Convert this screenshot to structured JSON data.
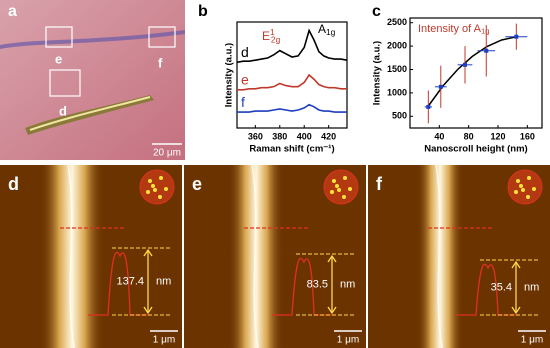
{
  "panel_a": {
    "label": "a",
    "boxes": [
      "e",
      "f",
      "d"
    ],
    "scale": "20 μm"
  },
  "chart_data": [
    {
      "type": "line",
      "label": "b",
      "xlabel": "Raman shift (cm⁻¹)",
      "ylabel": "Intensity (a.u.)",
      "annotations": [
        {
          "base": "E",
          "sub": "2g",
          "sup": "1"
        },
        {
          "base": "A",
          "sub": "1g"
        }
      ],
      "x": [
        345,
        350,
        355,
        360,
        365,
        370,
        375,
        380,
        385,
        390,
        395,
        400,
        404,
        408,
        412,
        416,
        420,
        425,
        430,
        435
      ],
      "xlim": [
        345,
        435
      ],
      "xticks": [
        360,
        380,
        400,
        420
      ],
      "ylim": [
        0,
        10
      ],
      "series": [
        {
          "name": "d",
          "color": "#000000",
          "values": [
            6.2,
            6.3,
            6.3,
            6.4,
            6.5,
            6.6,
            6.9,
            7.3,
            7.0,
            6.7,
            6.8,
            7.6,
            9.2,
            8.3,
            7.2,
            6.8,
            6.6,
            6.5,
            6.5,
            6.4
          ]
        },
        {
          "name": "e",
          "color": "#c0392b",
          "values": [
            3.6,
            3.6,
            3.7,
            3.7,
            3.8,
            3.8,
            3.9,
            4.2,
            4.0,
            3.9,
            3.9,
            4.3,
            5.0,
            4.6,
            4.1,
            3.9,
            3.8,
            3.8,
            3.7,
            3.7
          ]
        },
        {
          "name": "f",
          "color": "#1f3fbf",
          "values": [
            1.5,
            1.5,
            1.5,
            1.6,
            1.6,
            1.6,
            1.7,
            1.8,
            1.7,
            1.6,
            1.7,
            1.9,
            2.2,
            2.0,
            1.7,
            1.6,
            1.6,
            1.5,
            1.5,
            1.5
          ]
        }
      ]
    },
    {
      "type": "scatter",
      "label": "c",
      "annotation": {
        "base": "Intensity of A",
        "sub": "1g"
      },
      "xlabel": "Nanoscroll height (nm)",
      "ylabel": "Intensity (a.u.)",
      "xlim": [
        0,
        180
      ],
      "xticks": [
        40,
        80,
        120,
        160
      ],
      "ylim": [
        250,
        2600
      ],
      "yticks": [
        500,
        1000,
        1500,
        2000,
        2500
      ],
      "x": [
        25,
        42,
        75,
        104,
        145
      ],
      "xerr": [
        5,
        8,
        10,
        12,
        15
      ],
      "values": [
        700,
        1130,
        1600,
        1900,
        2200
      ],
      "yerr": [
        350,
        450,
        400,
        550,
        280
      ],
      "color": "#1f3fbf",
      "errcolor": "#c0392b",
      "fit": {
        "x": [
          25,
          45,
          65,
          85,
          105,
          125,
          145
        ],
        "values": [
          720,
          1150,
          1500,
          1780,
          1990,
          2130,
          2200
        ],
        "color": "#000000"
      }
    }
  ],
  "afm": [
    {
      "label": "d",
      "height": 137.4,
      "unit": "nm",
      "scale": "1 μm"
    },
    {
      "label": "e",
      "height": 83.5,
      "unit": "nm",
      "scale": "1 μm"
    },
    {
      "label": "f",
      "height": 35.4,
      "unit": "nm",
      "scale": "1 μm"
    }
  ]
}
